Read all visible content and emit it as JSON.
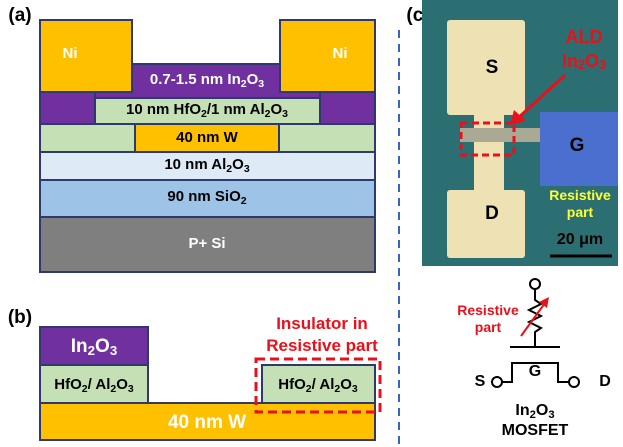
{
  "panel_a": {
    "label": "(a)",
    "ni_left": [
      "Ni"
    ],
    "ni_right": [
      "Ni"
    ],
    "in2o3": [
      "0.7-1.5 nm In",
      "2",
      "O",
      "3"
    ],
    "hfo2": [
      "10 nm HfO",
      "2",
      "/1 nm Al",
      "2",
      "O",
      "3"
    ],
    "w": [
      "40 nm W"
    ],
    "al2o3": [
      "10 nm Al",
      "2",
      "O",
      "3"
    ],
    "sio2": [
      "90 nm SiO",
      "2"
    ],
    "si": [
      "P+ Si"
    ]
  },
  "panel_b": {
    "label": "(b)",
    "in2o3": [
      "In",
      "2",
      "O",
      "3"
    ],
    "hfo2_left": [
      "HfO",
      "2",
      "/ Al",
      "2",
      "O",
      "3"
    ],
    "hfo2_right": [
      "HfO",
      "2",
      "/ Al",
      "2",
      "O",
      "3"
    ],
    "w": [
      "40 nm W"
    ],
    "note_line1": [
      "Insulator in"
    ],
    "note_line2": [
      "Resistive part"
    ]
  },
  "panel_c": {
    "label": "(c)",
    "ald_line1": [
      "ALD"
    ],
    "ald_line2": [
      "In",
      "2",
      "O",
      "3"
    ],
    "s": [
      "S"
    ],
    "d": [
      "D"
    ],
    "g": [
      "G"
    ],
    "resistive_line1": [
      "Resistive"
    ],
    "resistive_line2": [
      "part"
    ],
    "scale": [
      "20 μm"
    ],
    "schematic": {
      "resistive_line1": [
        "Resistive"
      ],
      "resistive_line2": [
        "part"
      ],
      "s": [
        "S"
      ],
      "g": [
        "G"
      ],
      "d": [
        "D"
      ],
      "caption_line1": [
        "In",
        "2",
        "O",
        "3"
      ],
      "caption_line2": [
        "MOSFET"
      ]
    }
  }
}
